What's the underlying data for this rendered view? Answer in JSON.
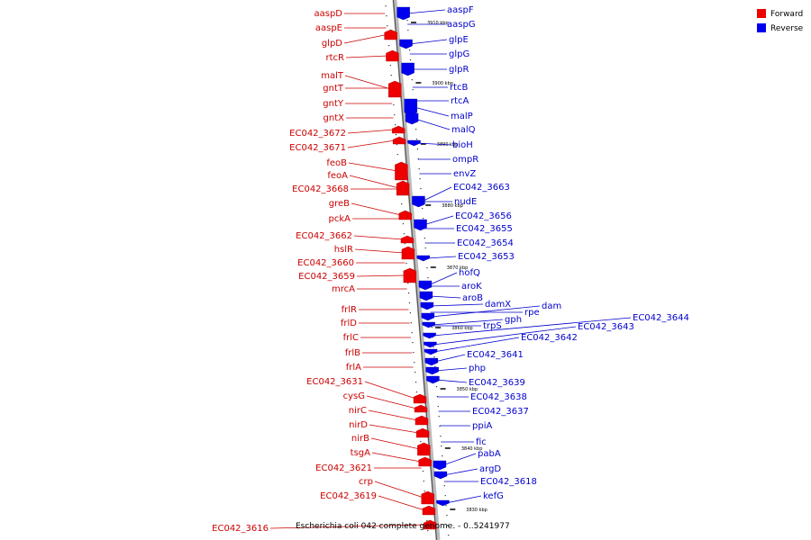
{
  "genome_title": "Escherichia coli 042 complete genome. - 0..5241977",
  "legend": [
    {
      "label": "Forward",
      "color": "#ee0000"
    },
    {
      "label": "Reverse",
      "color": "#0000ee"
    }
  ],
  "ticks": [
    "3910 kbp",
    "3900 kbp",
    "3890 kbp",
    "3880 kbp",
    "3870 kbp",
    "3860 kbp",
    "3850 kbp",
    "3840 kbp",
    "3830 kbp"
  ],
  "forward_genes": [
    "aaspD",
    "aaspE",
    "glpD",
    "rtcR",
    "malT",
    "gntT",
    "gntY",
    "gntX",
    "EC042_3672",
    "EC042_3671",
    "feoB",
    "feoA",
    "EC042_3668",
    "greB",
    "pckA",
    "EC042_3662",
    "hslR",
    "EC042_3660",
    "EC042_3659",
    "mrcA",
    "frlR",
    "frlD",
    "frlC",
    "frlB",
    "frlA",
    "EC042_3631",
    "cysG",
    "nirC",
    "nirD",
    "nirB",
    "tsgA",
    "EC042_3621",
    "crp",
    "EC042_3619",
    "EC042_3616"
  ],
  "reverse_genes": [
    "aaspF",
    "aaspG",
    "glpE",
    "glpG",
    "glpR",
    "rtcB",
    "rtcA",
    "malP",
    "malQ",
    "bioH",
    "ompR",
    "envZ",
    "EC042_3663",
    "nudE",
    "EC042_3656",
    "EC042_3655",
    "EC042_3654",
    "EC042_3653",
    "hofQ",
    "aroK",
    "aroB",
    "damX",
    "dam",
    "rpe",
    "gph",
    "trpS",
    "EC042_3644",
    "EC042_3643",
    "EC042_3642",
    "EC042_3641",
    "php",
    "EC042_3639",
    "EC042_3638",
    "EC042_3637",
    "ppiA",
    "fic",
    "pabA",
    "argD",
    "EC042_3618",
    "kefG"
  ]
}
